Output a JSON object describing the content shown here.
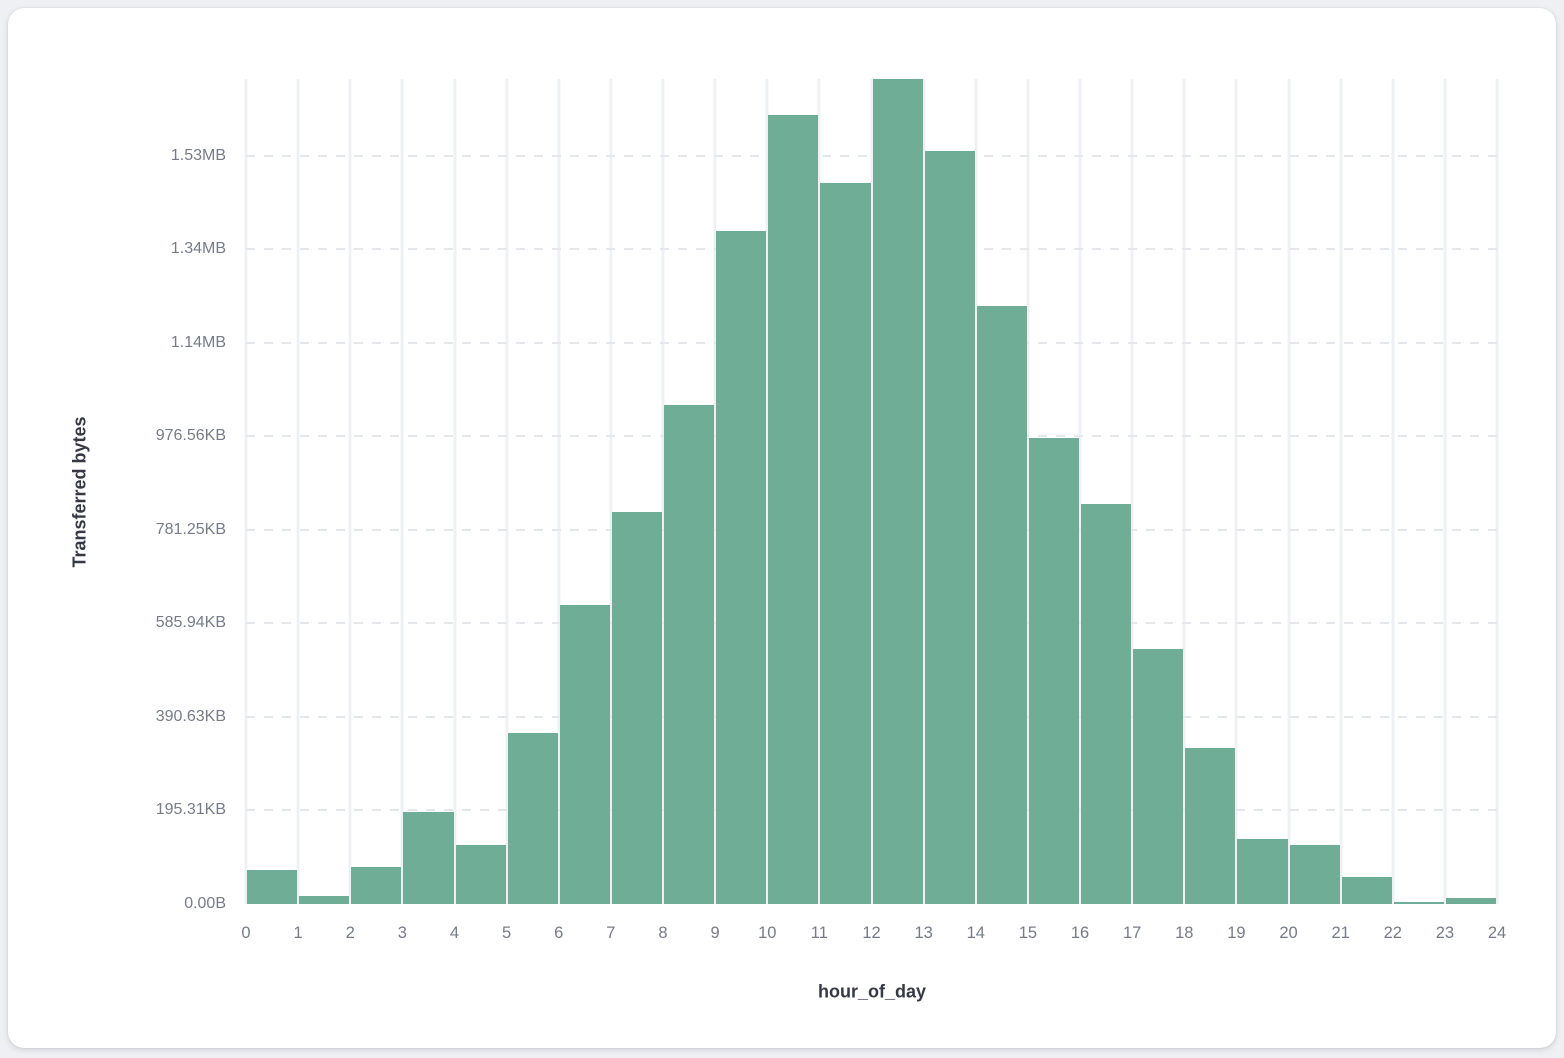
{
  "colors": {
    "page_background": "#eef0f3",
    "card_background": "#ffffff",
    "bar_fill": "#6fad96",
    "vertical_gridline": "#eef0f4",
    "horizontal_gridline": "#e4e7ec",
    "tick_label": "#767c87",
    "axis_title": "#343943"
  },
  "chart_data": {
    "type": "bar",
    "title": "",
    "xlabel": "hour_of_day",
    "ylabel": "Transferred bytes",
    "values_unit": "bytes",
    "categories": [
      0,
      1,
      2,
      3,
      4,
      5,
      6,
      7,
      8,
      9,
      10,
      11,
      12,
      13,
      14,
      15,
      16,
      17,
      18,
      19,
      20,
      21,
      22,
      23
    ],
    "values": [
      72000,
      17000,
      79000,
      197000,
      126000,
      365000,
      639000,
      838000,
      1067000,
      1440000,
      1686000,
      1541000,
      1764000,
      1611000,
      1278000,
      996000,
      855000,
      545000,
      333000,
      139000,
      126000,
      58000,
      4000,
      13000
    ],
    "x_tick_labels": [
      "0",
      "1",
      "2",
      "3",
      "4",
      "5",
      "6",
      "7",
      "8",
      "9",
      "10",
      "11",
      "12",
      "13",
      "14",
      "15",
      "16",
      "17",
      "18",
      "19",
      "20",
      "21",
      "22",
      "23",
      "24"
    ],
    "y_ticks": [
      {
        "label": "0.00B",
        "value": 0
      },
      {
        "label": "195.31KB",
        "value": 200000
      },
      {
        "label": "390.63KB",
        "value": 400000
      },
      {
        "label": "585.94KB",
        "value": 600000
      },
      {
        "label": "781.25KB",
        "value": 800000
      },
      {
        "label": "976.56KB",
        "value": 1000000
      },
      {
        "label": "1.14MB",
        "value": 1200000
      },
      {
        "label": "1.34MB",
        "value": 1400000
      },
      {
        "label": "1.53MB",
        "value": 1600000
      }
    ],
    "ylim": [
      0,
      1764000
    ],
    "xlim": [
      0,
      24
    ],
    "grid": true,
    "legend": false
  }
}
